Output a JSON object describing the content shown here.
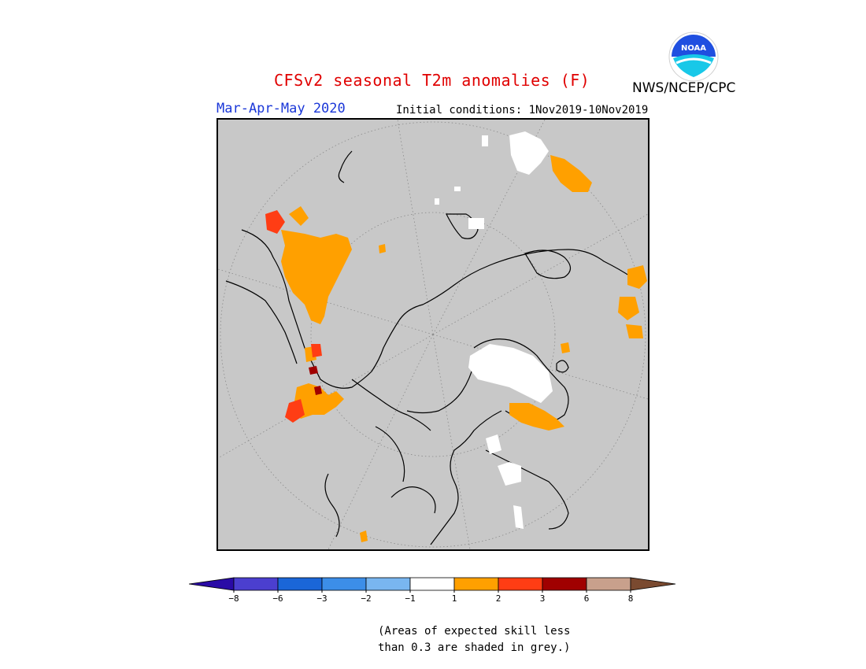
{
  "header": {
    "title": "CFSv2 seasonal T2m anomalies (F)",
    "org": "NWS/NCEP/CPC",
    "season": "Mar-Apr-May 2020",
    "initial_conditions": "Initial conditions: 1Nov2019-10Nov2019",
    "logo_text": "NOAA"
  },
  "colorbar": {
    "bins": [
      {
        "color": "#2a0ba6"
      },
      {
        "color": "#4b3fcf"
      },
      {
        "color": "#1a66d8"
      },
      {
        "color": "#3c8ee8"
      },
      {
        "color": "#79b6f0"
      },
      {
        "color": "#ffffff"
      },
      {
        "color": "#ffa000"
      },
      {
        "color": "#ff3d14"
      },
      {
        "color": "#a00000"
      },
      {
        "color": "#c8a08c"
      },
      {
        "color": "#7a4a30"
      }
    ],
    "labels": [
      "-8",
      "-6",
      "-3",
      "-2",
      "-1",
      "1",
      "2",
      "3",
      "6",
      "8"
    ]
  },
  "note": {
    "line1": "(Areas of expected skill less",
    "line2": "than 0.3 are shaded in grey.)"
  },
  "map": {
    "projection": "north polar stereographic",
    "background_color": "#c8c8c8",
    "warm_color": "#ffa000",
    "hot_color": "#ff3d14",
    "neutral_color": "#ffffff"
  }
}
